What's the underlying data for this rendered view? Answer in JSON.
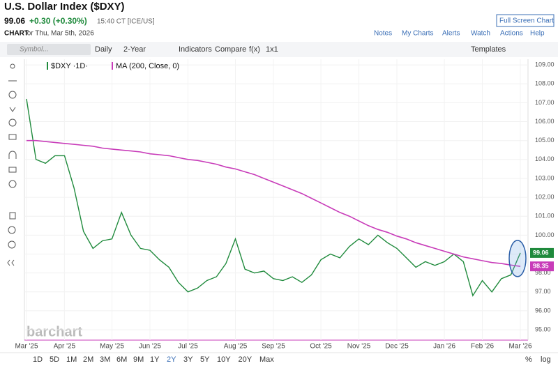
{
  "page": {
    "title": "U.S. Dollar Index ($DXY)",
    "last": "99.06",
    "change": "+0.30 (+0.30%)",
    "time": "15:40 CT [ICE/US]",
    "fullscreen": "Full Screen Chart",
    "chart_label": "CHART",
    "chart_date": "for Thu, Mar 5th, 2026",
    "links": [
      "Notes",
      "My Charts",
      "Alerts",
      "Watch",
      "Actions",
      "Help"
    ],
    "toolbar": [
      "Daily",
      "2-Year",
      "Indicators",
      "Compare",
      "f(x)",
      "1x1"
    ],
    "symbol_placeholder": "Symbol...",
    "templates": "Templates",
    "periods": [
      "1D",
      "5D",
      "1M",
      "2M",
      "3M",
      "6M",
      "9M",
      "1Y",
      "2Y",
      "3Y",
      "5Y",
      "10Y",
      "20Y",
      "Max"
    ],
    "active_period": "2Y",
    "pct": "%",
    "log": "log",
    "watermark": "barchart"
  },
  "chart_data": {
    "type": "line",
    "grid": true,
    "categories": [
      "Mar '25",
      null,
      null,
      null,
      "Apr '25",
      null,
      null,
      null,
      null,
      "May '25",
      null,
      null,
      null,
      "Jun '25",
      null,
      null,
      null,
      "Jul '25",
      null,
      null,
      null,
      null,
      "Aug '25",
      null,
      null,
      null,
      "Sep '25",
      null,
      null,
      null,
      null,
      "Oct '25",
      null,
      null,
      null,
      "Nov '25",
      null,
      null,
      null,
      "Dec '25",
      null,
      null,
      null,
      null,
      "Jan '26",
      null,
      null,
      null,
      "Feb '26",
      null,
      null,
      null,
      "Mar '26"
    ],
    "series": [
      {
        "name": "$DXY ·1D·",
        "color": "#1f8a3c",
        "values": [
          107.2,
          104.0,
          103.8,
          104.2,
          104.2,
          102.5,
          100.2,
          99.3,
          99.7,
          99.8,
          101.2,
          100.0,
          99.3,
          99.2,
          98.7,
          98.3,
          97.5,
          97.0,
          97.2,
          97.6,
          97.8,
          98.5,
          99.8,
          98.2,
          98.0,
          98.1,
          97.7,
          97.6,
          97.8,
          97.5,
          97.9,
          98.7,
          99.0,
          98.8,
          99.4,
          99.8,
          99.5,
          100.0,
          99.6,
          99.3,
          98.8,
          98.3,
          98.6,
          98.4,
          98.6,
          99.0,
          98.6,
          96.8,
          97.6,
          97.0,
          97.7,
          97.9,
          99.06
        ]
      },
      {
        "name": "MA (200, Close, 0)",
        "color": "#c83cb9",
        "values": [
          105.0,
          105.0,
          104.95,
          104.9,
          104.85,
          104.8,
          104.75,
          104.7,
          104.6,
          104.55,
          104.5,
          104.45,
          104.4,
          104.3,
          104.25,
          104.2,
          104.1,
          104.0,
          103.95,
          103.85,
          103.75,
          103.6,
          103.5,
          103.35,
          103.2,
          103.0,
          102.8,
          102.6,
          102.4,
          102.2,
          101.95,
          101.7,
          101.45,
          101.2,
          101.0,
          100.75,
          100.5,
          100.3,
          100.15,
          99.95,
          99.8,
          99.6,
          99.45,
          99.3,
          99.15,
          99.0,
          98.85,
          98.75,
          98.65,
          98.55,
          98.5,
          98.42,
          98.35
        ]
      }
    ],
    "ylim": [
      94.45,
      109.3
    ],
    "yticks": [
      {
        "value": 95,
        "label": "95.00"
      },
      {
        "value": 96,
        "label": "96.00"
      },
      {
        "value": 97,
        "label": "97.00"
      },
      {
        "value": 98,
        "label": "98.00"
      },
      {
        "value": 99,
        "label": "99.00"
      },
      {
        "value": 100,
        "label": "100.00"
      },
      {
        "value": 101,
        "label": "101.00"
      },
      {
        "value": 102,
        "label": "102.00"
      },
      {
        "value": 103,
        "label": "103.00"
      },
      {
        "value": 104,
        "label": "104.00"
      },
      {
        "value": 105,
        "label": "105.00"
      },
      {
        "value": 106,
        "label": "106.00"
      },
      {
        "value": 107,
        "label": "107.00"
      },
      {
        "value": 108,
        "label": "108.00"
      },
      {
        "value": 109,
        "label": "109.00"
      }
    ]
  }
}
